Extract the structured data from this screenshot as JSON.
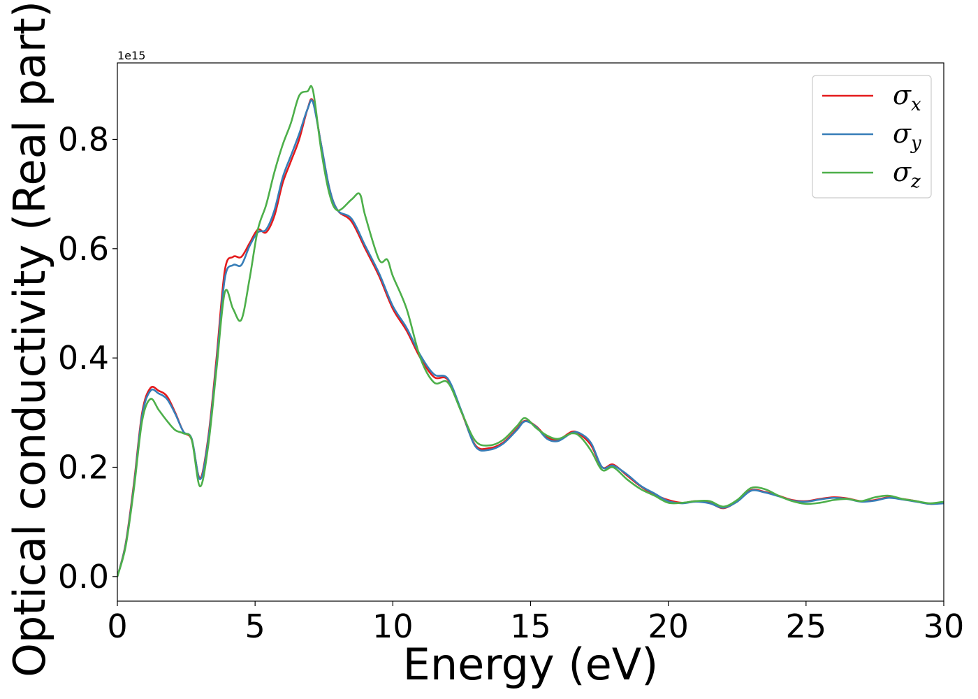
{
  "chart_data": {
    "type": "line",
    "xlabel": "Energy (eV)",
    "ylabel": "Optical conductivity (Real part)",
    "y_offset_text": "1e15",
    "xlim": [
      0,
      30
    ],
    "ylim": [
      -0.045,
      0.94
    ],
    "x_ticks": [
      0,
      5,
      10,
      15,
      20,
      25,
      30
    ],
    "x_tick_labels": [
      "0",
      "5",
      "10",
      "15",
      "20",
      "25",
      "30"
    ],
    "y_ticks": [
      0.0,
      0.2,
      0.4,
      0.6,
      0.8
    ],
    "y_tick_labels": [
      "0.0",
      "0.2",
      "0.4",
      "0.6",
      "0.8"
    ],
    "grid": false,
    "legend_position": "top-right",
    "series": [
      {
        "name": "σx",
        "legend_base": "σ",
        "legend_sub": "x",
        "color": "#e41a1c",
        "x": [
          0,
          0.3,
          0.6,
          0.9,
          1.2,
          1.5,
          1.8,
          2.1,
          2.4,
          2.7,
          3.0,
          3.3,
          3.6,
          3.9,
          4.2,
          4.5,
          4.8,
          5.1,
          5.4,
          5.7,
          6.0,
          6.3,
          6.6,
          6.9,
          7.1,
          7.4,
          7.7,
          8.0,
          8.5,
          9.0,
          9.5,
          10.0,
          10.5,
          11.0,
          11.5,
          12.0,
          12.5,
          13.0,
          13.5,
          14.0,
          14.5,
          14.8,
          15.2,
          15.6,
          16.0,
          16.5,
          16.8,
          17.2,
          17.6,
          18.0,
          18.5,
          19.0,
          19.5,
          20.0,
          20.5,
          21.0,
          21.5,
          22.0,
          22.5,
          23.0,
          23.5,
          24.0,
          24.5,
          25.0,
          25.5,
          26.0,
          26.5,
          27.0,
          27.5,
          28.0,
          28.5,
          29.0,
          29.5,
          30.0
        ],
        "y": [
          0.0,
          0.06,
          0.17,
          0.3,
          0.345,
          0.34,
          0.33,
          0.3,
          0.265,
          0.25,
          0.18,
          0.255,
          0.4,
          0.56,
          0.585,
          0.585,
          0.61,
          0.635,
          0.63,
          0.66,
          0.72,
          0.76,
          0.8,
          0.855,
          0.87,
          0.79,
          0.71,
          0.67,
          0.65,
          0.6,
          0.55,
          0.49,
          0.45,
          0.4,
          0.365,
          0.36,
          0.3,
          0.24,
          0.235,
          0.245,
          0.27,
          0.285,
          0.275,
          0.255,
          0.25,
          0.265,
          0.26,
          0.24,
          0.2,
          0.205,
          0.185,
          0.165,
          0.15,
          0.14,
          0.135,
          0.138,
          0.135,
          0.125,
          0.138,
          0.158,
          0.155,
          0.148,
          0.14,
          0.138,
          0.142,
          0.145,
          0.143,
          0.138,
          0.14,
          0.145,
          0.142,
          0.138,
          0.133,
          0.135
        ]
      },
      {
        "name": "σy",
        "legend_base": "σ",
        "legend_sub": "y",
        "color": "#377eb8",
        "x": [
          0,
          0.3,
          0.6,
          0.9,
          1.2,
          1.5,
          1.8,
          2.1,
          2.4,
          2.7,
          3.0,
          3.3,
          3.6,
          3.9,
          4.2,
          4.5,
          4.8,
          5.1,
          5.4,
          5.7,
          6.0,
          6.3,
          6.6,
          6.9,
          7.1,
          7.4,
          7.7,
          8.0,
          8.5,
          9.0,
          9.5,
          10.0,
          10.5,
          11.0,
          11.5,
          12.0,
          12.5,
          13.0,
          13.5,
          14.0,
          14.5,
          14.8,
          15.2,
          15.6,
          16.0,
          16.5,
          16.8,
          17.2,
          17.6,
          18.0,
          18.5,
          19.0,
          19.5,
          20.0,
          20.5,
          21.0,
          21.5,
          22.0,
          22.5,
          23.0,
          23.5,
          24.0,
          24.5,
          25.0,
          25.5,
          26.0,
          26.5,
          27.0,
          27.5,
          28.0,
          28.5,
          29.0,
          29.5,
          30.0
        ],
        "y": [
          0.0,
          0.058,
          0.165,
          0.295,
          0.34,
          0.335,
          0.325,
          0.298,
          0.265,
          0.252,
          0.178,
          0.25,
          0.39,
          0.545,
          0.57,
          0.57,
          0.605,
          0.63,
          0.635,
          0.67,
          0.73,
          0.77,
          0.81,
          0.855,
          0.868,
          0.79,
          0.71,
          0.67,
          0.655,
          0.605,
          0.555,
          0.495,
          0.455,
          0.405,
          0.37,
          0.362,
          0.302,
          0.238,
          0.232,
          0.243,
          0.268,
          0.284,
          0.274,
          0.252,
          0.248,
          0.263,
          0.262,
          0.244,
          0.2,
          0.203,
          0.187,
          0.166,
          0.152,
          0.138,
          0.134,
          0.137,
          0.134,
          0.126,
          0.137,
          0.157,
          0.154,
          0.147,
          0.139,
          0.137,
          0.141,
          0.144,
          0.142,
          0.137,
          0.139,
          0.144,
          0.141,
          0.137,
          0.133,
          0.134
        ]
      },
      {
        "name": "σz",
        "legend_base": "σ",
        "legend_sub": "z",
        "color": "#4daf4a",
        "x": [
          0,
          0.3,
          0.6,
          0.9,
          1.2,
          1.5,
          1.8,
          2.1,
          2.4,
          2.7,
          3.0,
          3.3,
          3.6,
          3.9,
          4.2,
          4.5,
          4.8,
          5.1,
          5.4,
          5.7,
          6.0,
          6.3,
          6.6,
          6.9,
          7.1,
          7.4,
          7.7,
          8.0,
          8.5,
          8.8,
          9.0,
          9.5,
          9.8,
          10.0,
          10.5,
          11.0,
          11.5,
          12.0,
          12.5,
          13.0,
          13.5,
          14.0,
          14.5,
          14.8,
          15.2,
          15.6,
          16.0,
          16.5,
          16.8,
          17.2,
          17.6,
          18.0,
          18.5,
          19.0,
          19.5,
          20.0,
          20.5,
          21.0,
          21.5,
          22.0,
          22.5,
          23.0,
          23.5,
          24.0,
          24.5,
          25.0,
          25.5,
          26.0,
          26.5,
          27.0,
          27.5,
          28.0,
          28.5,
          29.0,
          29.5,
          30.0
        ],
        "y": [
          0.0,
          0.055,
          0.16,
          0.285,
          0.325,
          0.305,
          0.285,
          0.268,
          0.262,
          0.25,
          0.165,
          0.24,
          0.38,
          0.52,
          0.49,
          0.47,
          0.545,
          0.635,
          0.68,
          0.74,
          0.79,
          0.83,
          0.88,
          0.888,
          0.89,
          0.78,
          0.7,
          0.67,
          0.69,
          0.7,
          0.66,
          0.58,
          0.58,
          0.55,
          0.49,
          0.4,
          0.355,
          0.355,
          0.3,
          0.248,
          0.24,
          0.25,
          0.275,
          0.29,
          0.272,
          0.258,
          0.252,
          0.262,
          0.256,
          0.23,
          0.195,
          0.2,
          0.178,
          0.16,
          0.148,
          0.135,
          0.135,
          0.138,
          0.138,
          0.128,
          0.14,
          0.162,
          0.16,
          0.148,
          0.138,
          0.133,
          0.135,
          0.14,
          0.142,
          0.138,
          0.145,
          0.148,
          0.142,
          0.138,
          0.134,
          0.137
        ]
      }
    ]
  }
}
